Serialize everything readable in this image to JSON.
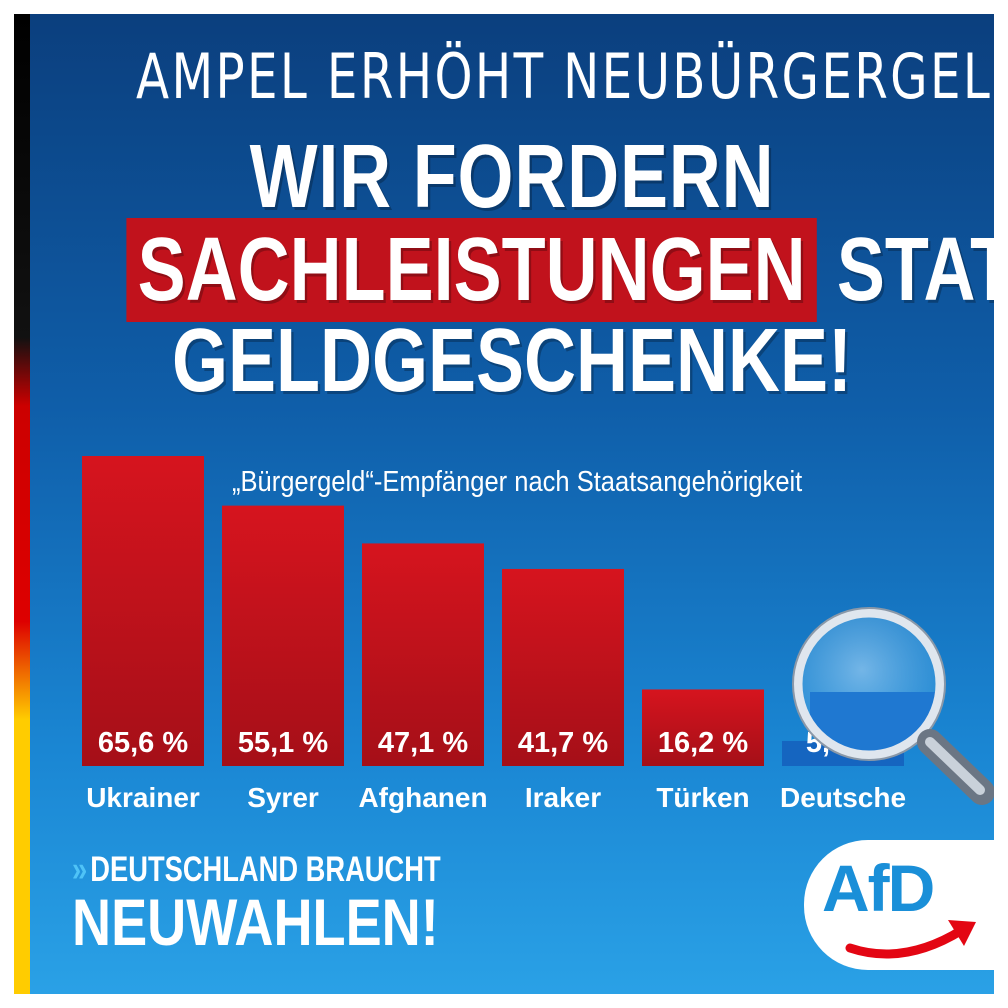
{
  "headline": {
    "line_thin": "AMPEL ERHÖHT NEUBÜRGERGELD:",
    "line1": "WIR FORDERN",
    "line2_highlight": "SACHLEISTUNGEN",
    "line2_rest": "STATT",
    "line3": "GELDGESCHENKE!"
  },
  "chart_data": {
    "type": "bar",
    "title": "„Bürgergeld“-Empfänger nach Staatsangehörigkeit",
    "categories": [
      "Ukrainer",
      "Syrer",
      "Afghanen",
      "Iraker",
      "Türken",
      "Deutsche"
    ],
    "values": [
      65.6,
      55.1,
      47.1,
      41.7,
      16.2,
      5.3
    ],
    "value_labels": [
      "65,6 %",
      "55,1 %",
      "47,1 %",
      "41,7 %",
      "16,2 %",
      "5,3 %"
    ],
    "unit": "%",
    "ylim": [
      0,
      65.6
    ],
    "grid": false,
    "bar_colors": [
      "#c1121c",
      "#c1121c",
      "#c1121c",
      "#c1121c",
      "#c1121c",
      "#1565c0"
    ]
  },
  "footer": {
    "slogan_chevron": "»",
    "slogan_line1": "DEUTSCHLAND BRAUCHT",
    "slogan_line2": "NEUWAHLEN!",
    "logo_text": "AfD"
  },
  "colors": {
    "accent_red": "#c1121c",
    "logo_blue": "#1a8fd8"
  },
  "icons": {
    "magnifier": "magnifying-glass-icon",
    "logo_arrow": "swoosh-arrow-icon"
  }
}
